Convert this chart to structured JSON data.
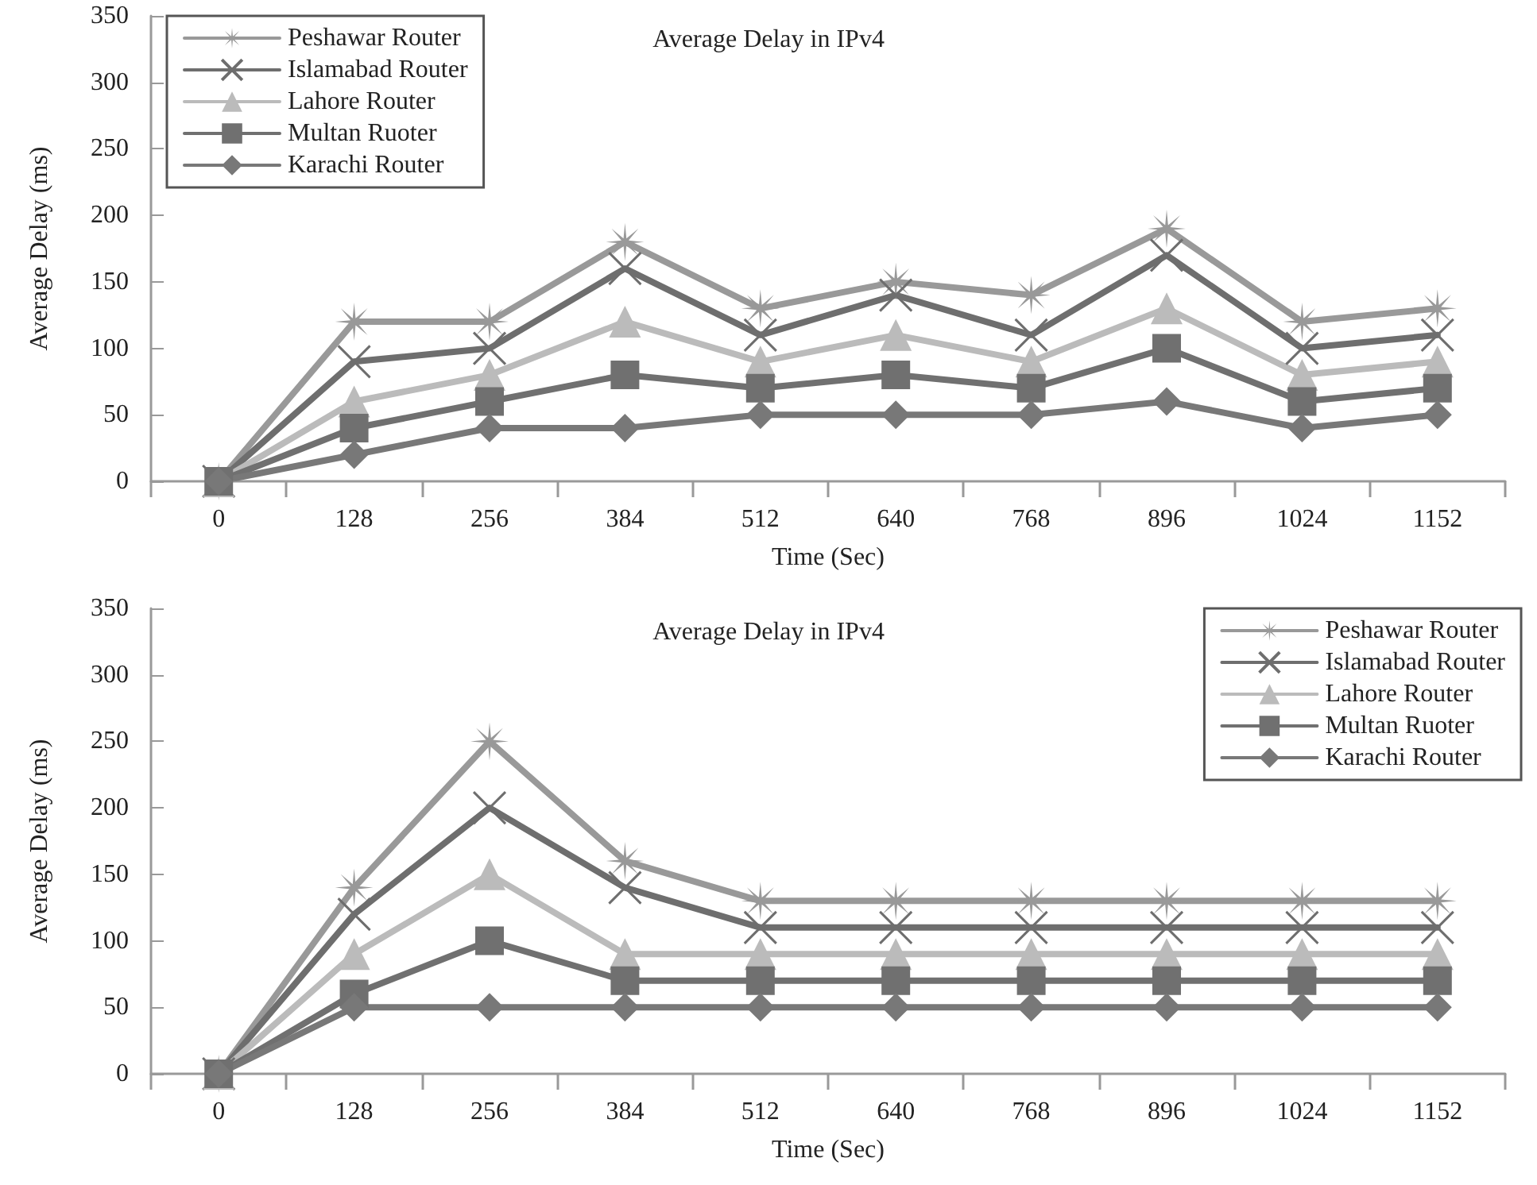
{
  "chart_data": [
    {
      "type": "line",
      "title": "Average Delay in IPv4",
      "xlabel": "Time (Sec)",
      "ylabel": "Average Delay (ms)",
      "categories": [
        "0",
        "128",
        "256",
        "384",
        "512",
        "640",
        "768",
        "896",
        "1024",
        "1152"
      ],
      "ylim": [
        0,
        350
      ],
      "yticks": [
        0,
        50,
        100,
        150,
        200,
        250,
        300,
        350
      ],
      "grid": false,
      "legend": "top left",
      "series": [
        {
          "name": "Peshawar Router",
          "color": "#999999",
          "marker": "star",
          "values": [
            0,
            120,
            120,
            180,
            130,
            150,
            140,
            190,
            120,
            130
          ]
        },
        {
          "name": "Islamabad Router",
          "color": "#6e6e6e",
          "marker": "cross",
          "values": [
            0,
            90,
            100,
            160,
            110,
            140,
            110,
            170,
            100,
            110
          ]
        },
        {
          "name": "Lahore Router",
          "color": "#bbbbbb",
          "marker": "triangle",
          "values": [
            0,
            60,
            80,
            120,
            90,
            110,
            90,
            130,
            80,
            90
          ]
        },
        {
          "name": "Multan Ruoter",
          "color": "#707070",
          "marker": "square",
          "values": [
            0,
            40,
            60,
            80,
            70,
            80,
            70,
            100,
            60,
            70
          ]
        },
        {
          "name": "Karachi Router",
          "color": "#787878",
          "marker": "diamond",
          "values": [
            0,
            20,
            40,
            40,
            50,
            50,
            50,
            60,
            40,
            50
          ]
        }
      ]
    },
    {
      "type": "line",
      "title": "Average Delay in IPv4",
      "xlabel": "Time (Sec)",
      "ylabel": "Average Delay (ms)",
      "categories": [
        "0",
        "128",
        "256",
        "384",
        "512",
        "640",
        "768",
        "896",
        "1024",
        "1152"
      ],
      "ylim": [
        0,
        350
      ],
      "yticks": [
        0,
        50,
        100,
        150,
        200,
        250,
        300,
        350
      ],
      "grid": false,
      "legend": "top right",
      "series": [
        {
          "name": "Peshawar Router",
          "color": "#999999",
          "marker": "star",
          "values": [
            0,
            140,
            250,
            160,
            130,
            130,
            130,
            130,
            130,
            130
          ]
        },
        {
          "name": "Islamabad Router",
          "color": "#6e6e6e",
          "marker": "cross",
          "values": [
            0,
            120,
            200,
            140,
            110,
            110,
            110,
            110,
            110,
            110
          ]
        },
        {
          "name": "Lahore Router",
          "color": "#bbbbbb",
          "marker": "triangle",
          "values": [
            0,
            90,
            150,
            90,
            90,
            90,
            90,
            90,
            90,
            90
          ]
        },
        {
          "name": "Multan Ruoter",
          "color": "#707070",
          "marker": "square",
          "values": [
            0,
            60,
            100,
            70,
            70,
            70,
            70,
            70,
            70,
            70
          ]
        },
        {
          "name": "Karachi Router",
          "color": "#787878",
          "marker": "diamond",
          "values": [
            0,
            50,
            50,
            50,
            50,
            50,
            50,
            50,
            50,
            50
          ]
        }
      ]
    }
  ]
}
